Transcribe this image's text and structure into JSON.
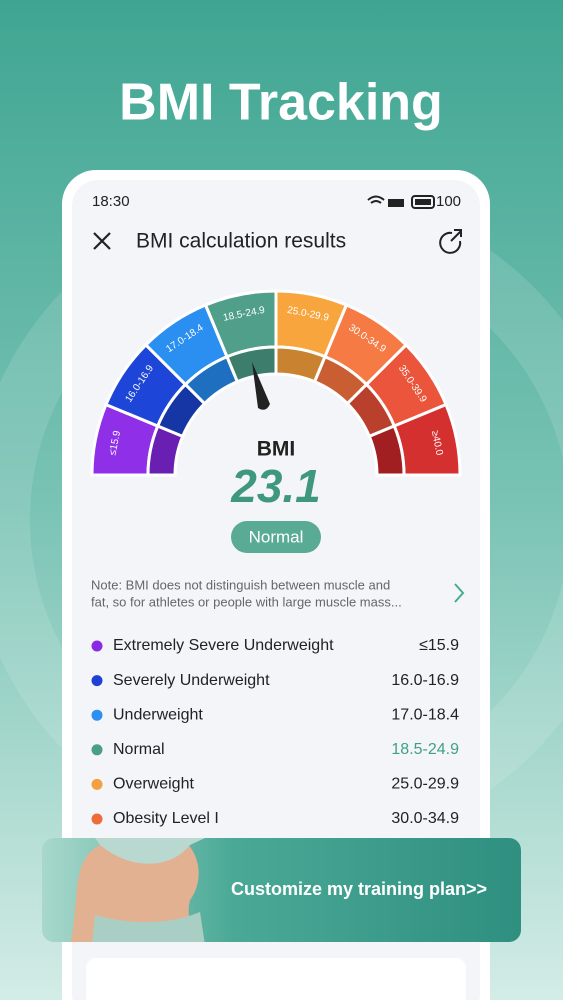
{
  "title": "BMI Tracking",
  "status_bar": {
    "time": "18:30",
    "battery": "100"
  },
  "header": {
    "title": "BMI calculation results"
  },
  "gauge": {
    "segments": [
      "≤15.9",
      "16.0-16.9",
      "17.0-18.4",
      "18.5-24.9",
      "25.0-29.9",
      "30.0-34.9",
      "35.0-39.9",
      "≥40.0"
    ],
    "label": "BMI",
    "value": "23.1",
    "category": "Normal"
  },
  "note": {
    "lines": [
      "Note: BMI does not distinguish between muscle and",
      "fat, so for athletes or people with large muscle mass..."
    ]
  },
  "categories": [
    {
      "name": "Extremely Severe Underweight",
      "range": "≤15.9"
    },
    {
      "name": "Severely Underweight",
      "range": "16.0-16.9"
    },
    {
      "name": "Underweight",
      "range": "17.0-18.4"
    },
    {
      "name": "Normal",
      "range": "18.5-24.9"
    },
    {
      "name": "Overweight",
      "range": "25.0-29.9"
    },
    {
      "name": "Obesity Level I",
      "range": "30.0-34.9"
    }
  ],
  "banner": {
    "text": "Customize my training plan>>"
  }
}
